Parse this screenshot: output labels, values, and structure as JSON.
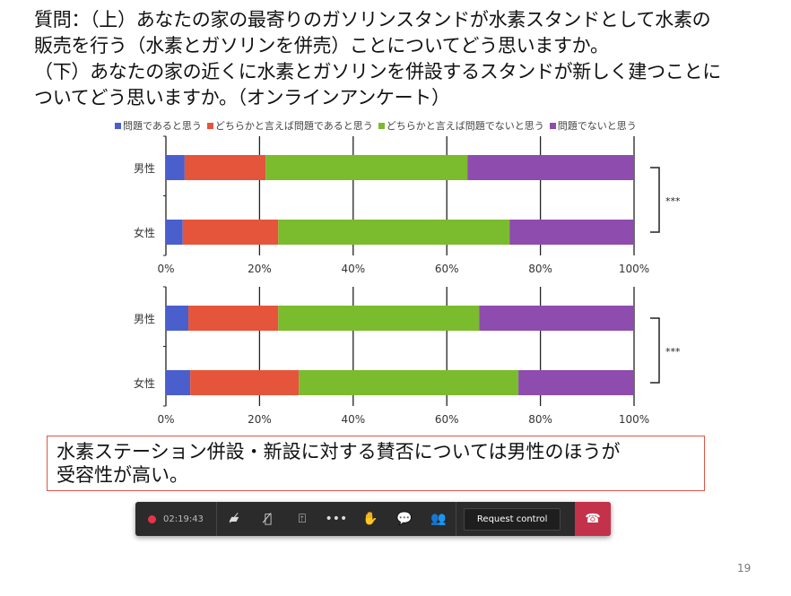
{
  "question": {
    "line1": "質問：（上）あなたの家の最寄りのガソリンスタンドが水素スタンドとして水素の",
    "line2": "販売を行う（水素とガソリンを併売）ことについてどう思いますか。",
    "line3": "（下）あなたの家の近くに水素とガソリンを併設するスタンドが新しく建つことに",
    "line4": "ついてどう思いますか。（オンラインアンケート）"
  },
  "legend": [
    "問題であると思う",
    "どちらかと言えば問題であると思う",
    "どちらかと言えば問題でないと思う",
    "問題でないと思う"
  ],
  "colors": [
    "#4a5fcc",
    "#e5553b",
    "#7bbb2e",
    "#8e4cae"
  ],
  "chart_data": [
    {
      "type": "bar",
      "stacked": true,
      "orientation": "horizontal",
      "categories": [
        "男性",
        "女性"
      ],
      "series": [
        {
          "name": "問題であると思う",
          "values": [
            4.0,
            3.6
          ]
        },
        {
          "name": "どちらかと言えば問題であると思う",
          "values": [
            17.3,
            20.4
          ]
        },
        {
          "name": "どちらかと言えば問題でないと思う",
          "values": [
            43.1,
            49.4
          ]
        },
        {
          "name": "問題でないと思う",
          "values": [
            35.6,
            26.6
          ]
        }
      ],
      "xticks": [
        "0%",
        "20%",
        "40%",
        "60%",
        "80%",
        "100%"
      ],
      "xlim": [
        0,
        100
      ],
      "grid": true,
      "annotation": "***"
    },
    {
      "type": "bar",
      "stacked": true,
      "orientation": "horizontal",
      "categories": [
        "男性",
        "女性"
      ],
      "series": [
        {
          "name": "問題であると思う",
          "values": [
            4.8,
            5.2
          ]
        },
        {
          "name": "どちらかと言えば問題であると思う",
          "values": [
            19.2,
            23.2
          ]
        },
        {
          "name": "どちらかと言えば問題でないと思う",
          "values": [
            42.9,
            46.9
          ]
        },
        {
          "name": "問題でないと思う",
          "values": [
            33.1,
            24.7
          ]
        }
      ],
      "xticks": [
        "0%",
        "20%",
        "40%",
        "60%",
        "80%",
        "100%"
      ],
      "xlim": [
        0,
        100
      ],
      "grid": true,
      "annotation": "***"
    }
  ],
  "conclusion": {
    "line1": "水素ステーション併設・新設に対する賛否については男性のほうが",
    "line2": "受容性が高い。"
  },
  "page_number": "19",
  "toolbar": {
    "timer": "02:19:43",
    "request_control": "Request control"
  }
}
